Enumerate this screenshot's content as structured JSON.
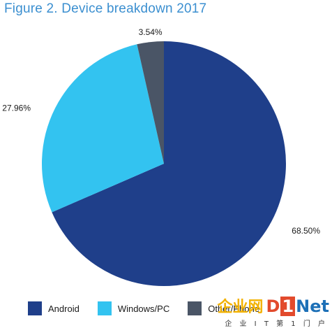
{
  "chart_data": {
    "type": "pie",
    "title": "Figure 2. Device breakdown 2017",
    "slices": [
      {
        "label": "Android",
        "value": 68.5,
        "value_label": "68.50%",
        "color": "#1f3f8a"
      },
      {
        "label": "Windows/PC",
        "value": 27.96,
        "value_label": "27.96%",
        "color": "#33c3f0"
      },
      {
        "label": "Other/Phone",
        "value": 3.54,
        "value_label": "3.54%",
        "color": "#4a5566"
      }
    ],
    "start_angle_deg": 0,
    "direction": "clockwise",
    "legend_position": "bottom"
  },
  "watermark": {
    "brand_cn": "企业网",
    "brand_d": "D",
    "brand_one": "1",
    "brand_net": "Net",
    "subtitle": "企 业 I T 第 1 门 户"
  }
}
